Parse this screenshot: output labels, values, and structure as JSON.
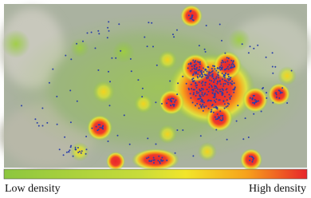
{
  "legend": {
    "low_label": "Low density",
    "high_label": "High density"
  }
}
